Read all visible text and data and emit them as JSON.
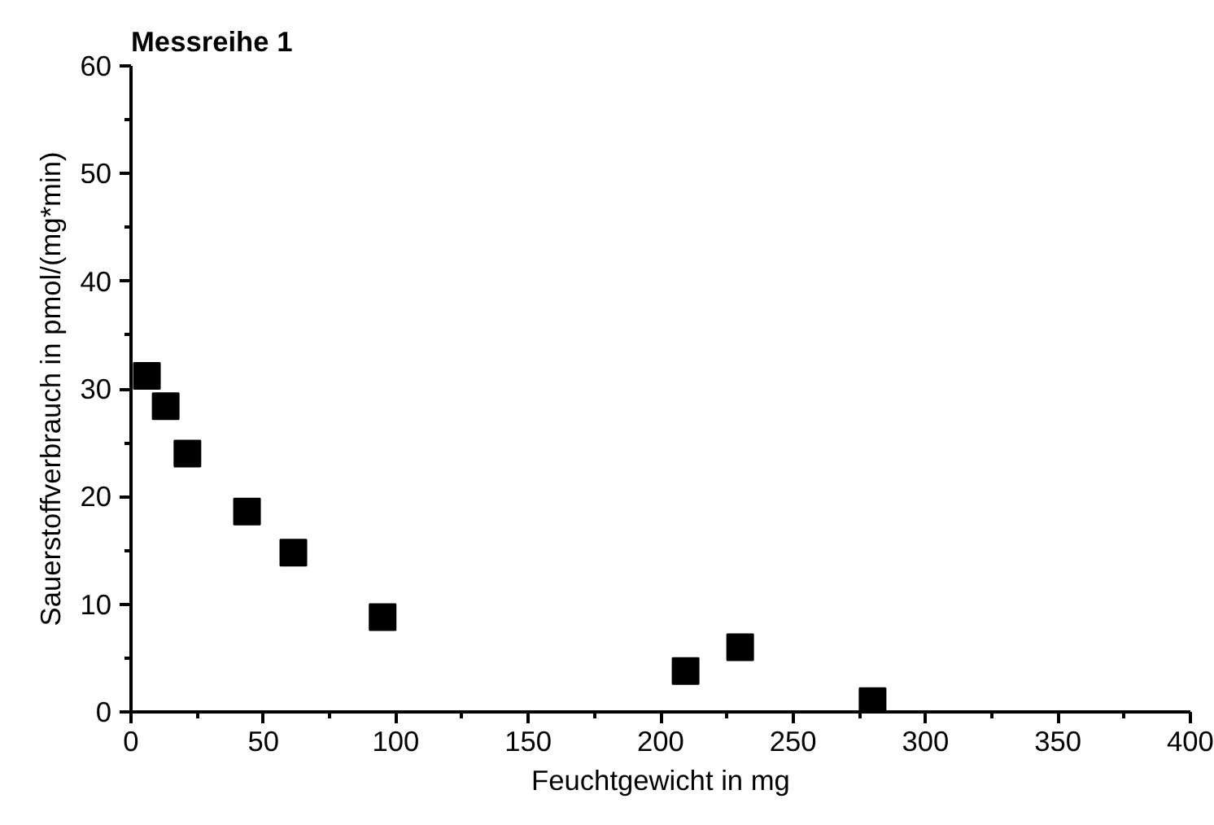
{
  "chart_data": {
    "type": "scatter",
    "title": "Messreihe 1",
    "xlabel": "Feuchtgewicht in mg",
    "ylabel": "Sauerstoffverbrauch in pmol/(mg*min)",
    "x": [
      6.0,
      13.1,
      21.3,
      43.8,
      61.3,
      95,
      209.4,
      230,
      280
    ],
    "series": [
      {
        "color": "#000000",
        "values": [
          31.2,
          28.4,
          24.0,
          18.6,
          14.8,
          8.8,
          3.8,
          6.0,
          1.0
        ]
      }
    ],
    "marker": "square",
    "grid": false,
    "xlim": [
      0,
      400
    ],
    "xticks": [
      0,
      {
        "value": 25,
        "label": null
      },
      50,
      {
        "value": 75,
        "label": null
      },
      100,
      {
        "value": 125,
        "label": null
      },
      150,
      {
        "value": 175,
        "label": null
      },
      200,
      {
        "value": 225,
        "label": null
      },
      250,
      {
        "value": 275,
        "label": null
      },
      300,
      {
        "value": 325,
        "label": null
      },
      350,
      {
        "value": 375,
        "label": null
      },
      400
    ],
    "ylim": [
      0,
      60
    ],
    "yticks": [
      0,
      {
        "value": 5,
        "label": null
      },
      10,
      {
        "value": 15,
        "label": null
      },
      20,
      {
        "value": 25,
        "label": null
      },
      30,
      {
        "value": 35,
        "label": null
      },
      40,
      {
        "value": 45,
        "label": null
      },
      50,
      {
        "value": 55,
        "label": null
      },
      60
    ]
  }
}
